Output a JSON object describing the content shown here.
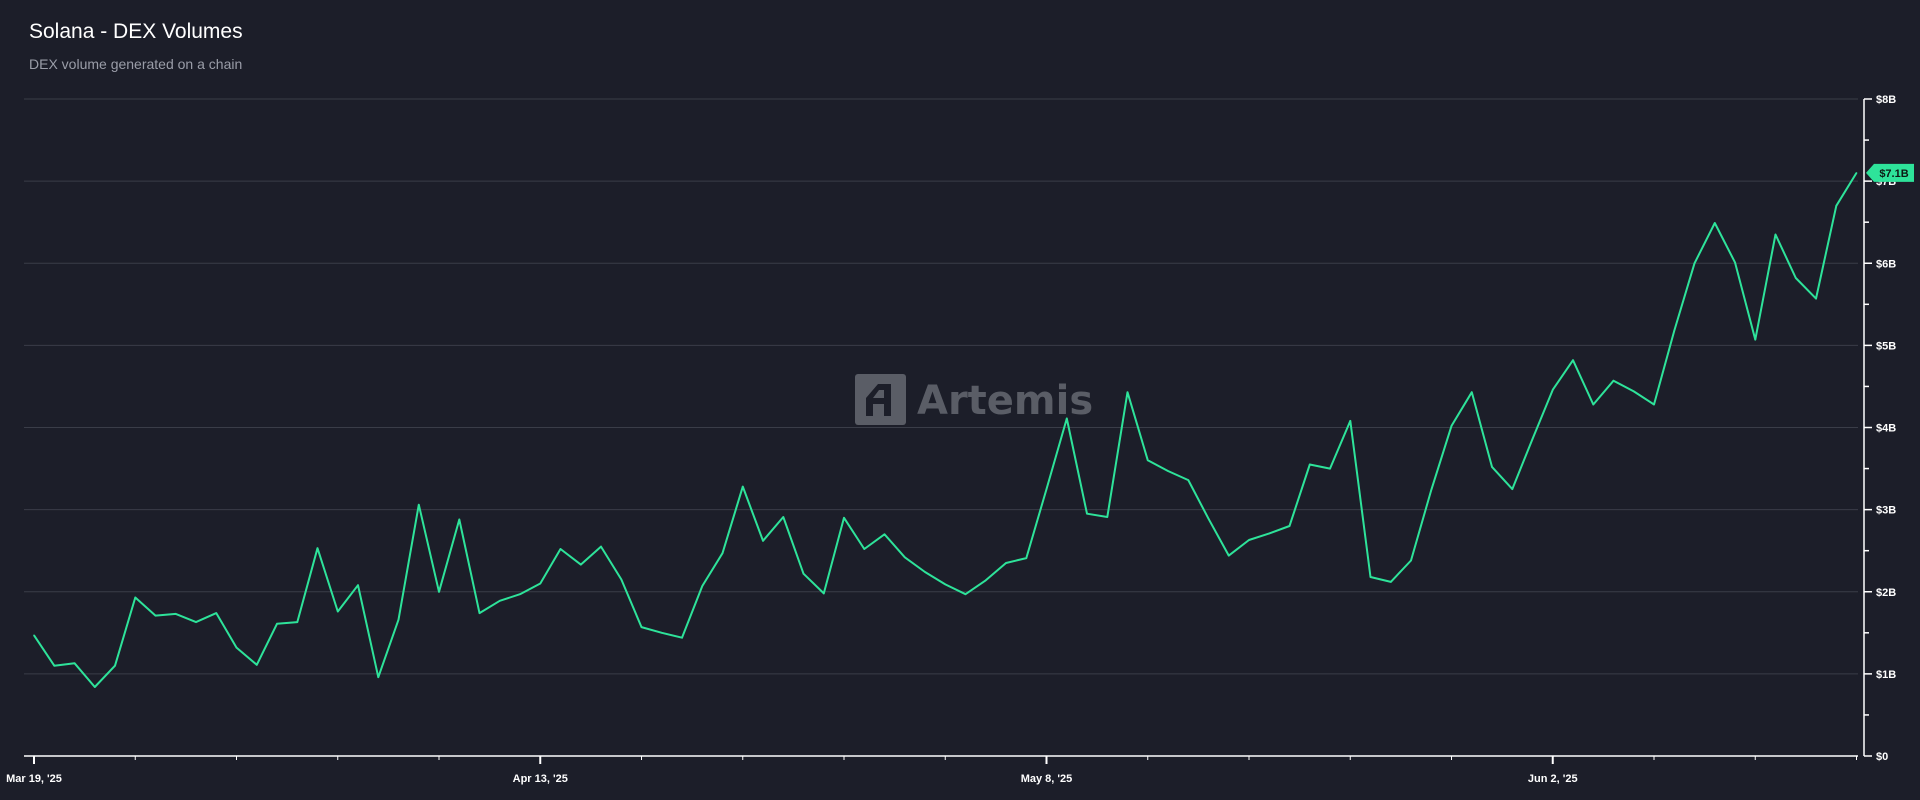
{
  "header": {
    "title": "Solana - DEX Volumes",
    "subtitle": "DEX volume generated on a chain"
  },
  "watermark": {
    "text": "Artemis",
    "icon": "artemis-logo-icon"
  },
  "colors": {
    "background": "#1c1e29",
    "line": "#2ee39a",
    "grid": "#3a3d48",
    "axis": "#ffffff",
    "watermark": "#5a5d66"
  },
  "chart_data": {
    "type": "line",
    "title": "Solana - DEX Volumes",
    "subtitle": "DEX volume generated on a chain",
    "x_start": "2025-03-19",
    "x_step_days": 1,
    "x_tick_labels": [
      "Mar 19, '25",
      "Apr 13, '25",
      "May 8, '25",
      "Jun 2, '25"
    ],
    "y_tick_labels": [
      "$0",
      "$1B",
      "$2B",
      "$3B",
      "$4B",
      "$5B",
      "$6B",
      "$7B",
      "$8B"
    ],
    "ylim": [
      0,
      8
    ],
    "y_unit": "B USD",
    "grid": true,
    "last_value_label": "$7.1B",
    "series": [
      {
        "name": "",
        "color": "#2ee39a",
        "values": [
          1.47,
          1.1,
          1.13,
          0.84,
          1.1,
          1.93,
          1.71,
          1.73,
          1.63,
          1.74,
          1.32,
          1.11,
          1.61,
          1.63,
          2.53,
          1.76,
          2.08,
          0.96,
          1.66,
          3.06,
          2.0,
          2.88,
          1.74,
          1.89,
          1.97,
          2.1,
          2.52,
          2.33,
          2.55,
          2.15,
          1.57,
          1.5,
          1.44,
          2.07,
          2.47,
          3.28,
          2.62,
          2.91,
          2.22,
          1.98,
          2.9,
          2.52,
          2.7,
          2.42,
          2.24,
          2.09,
          1.97,
          2.14,
          2.35,
          2.41,
          3.25,
          4.11,
          2.95,
          2.91,
          4.43,
          3.6,
          3.47,
          3.36,
          2.89,
          2.44,
          2.63,
          2.71,
          2.8,
          3.55,
          3.5,
          4.08,
          2.18,
          2.12,
          2.38,
          3.24,
          4.02,
          4.43,
          3.52,
          3.25,
          3.86,
          4.46,
          4.82,
          4.28,
          4.57,
          4.44,
          4.28,
          5.18,
          6.0,
          6.49,
          6.01,
          5.07,
          6.35,
          5.82,
          5.57,
          6.7,
          7.1
        ]
      }
    ]
  }
}
